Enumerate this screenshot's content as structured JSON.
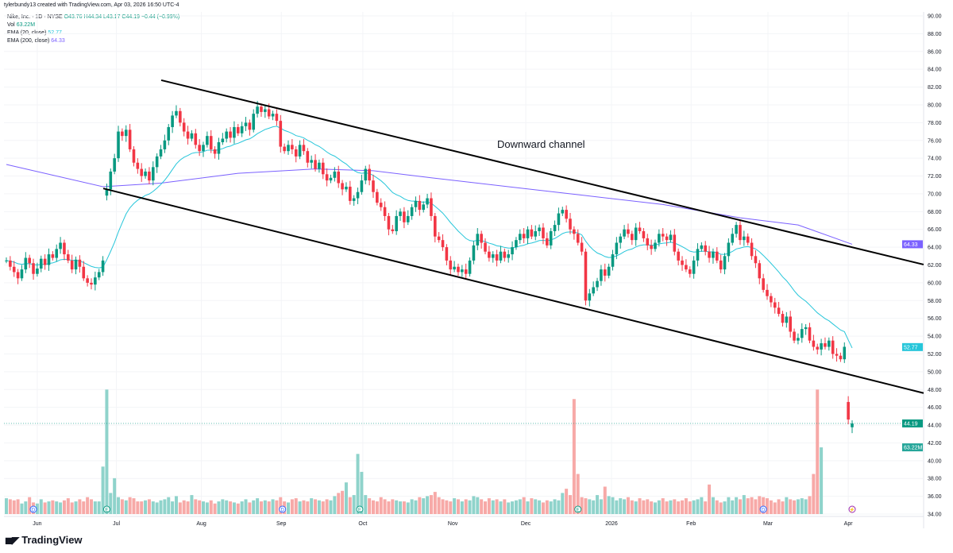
{
  "header": {
    "created": "tylerbundy13 created with TradingView.com, Apr 03, 2026 16:50 UTC-4"
  },
  "legend": {
    "symbol": "Nike, Inc. · 1D · NYSE",
    "o": "O43.76",
    "h": "H44.34",
    "l": "L43.17",
    "c": "C44.19",
    "chg": "−0.44 (−0.99%)",
    "vol_label": "Vol",
    "vol": "63.22M",
    "ema20_label": "EMA (20, close)",
    "ema20": "52.77",
    "ema200_label": "EMA (200, close)",
    "ema200": "64.33"
  },
  "footer": {
    "brand": "TradingView"
  },
  "chart_data": {
    "type": "candlestick",
    "colors": {
      "up": "#089981",
      "down": "#f23645",
      "vol_up": "#8fd3cb",
      "vol_down": "#f7a9a7",
      "ema20": "#26c6da",
      "ema200": "#7b61ff",
      "trend": "#000000"
    },
    "y_ticks": [
      "90.00",
      "88.00",
      "86.00",
      "84.00",
      "82.00",
      "80.00",
      "78.00",
      "76.00",
      "74.00",
      "72.00",
      "70.00",
      "68.00",
      "66.00",
      "64.00",
      "62.00",
      "60.00",
      "58.00",
      "56.00",
      "54.00",
      "52.00",
      "50.00",
      "48.00",
      "46.00",
      "44.00",
      "42.00",
      "40.00",
      "38.00",
      "36.00",
      "34.00"
    ],
    "ylim": [
      34,
      90
    ],
    "x_ticks": [
      {
        "label": "Jun",
        "i": 8
      },
      {
        "label": "Jul",
        "i": 28.5
      },
      {
        "label": "Aug",
        "i": 50.5
      },
      {
        "label": "Sep",
        "i": 71.2
      },
      {
        "label": "Oct",
        "i": 92.3
      },
      {
        "label": "Nov",
        "i": 115.6
      },
      {
        "label": "Dec",
        "i": 134.5
      },
      {
        "label": "2026",
        "i": 156.7
      },
      {
        "label": "Feb",
        "i": 177.3
      },
      {
        "label": "Mar",
        "i": 197.2
      },
      {
        "label": "Apr",
        "i": 218
      }
    ],
    "closes": [
      62.5,
      61.8,
      61.2,
      60.5,
      61.5,
      62.8,
      62.2,
      61,
      61.6,
      62.7,
      62,
      63.2,
      62.8,
      63.8,
      64.5,
      63.2,
      62.5,
      61.5,
      62.6,
      61.8,
      60.5,
      60,
      59.8,
      60.6,
      61.2,
      62.5,
      70.5,
      72.5,
      74,
      77,
      76.5,
      77.2,
      75,
      73.5,
      72.8,
      72,
      72.5,
      71.5,
      73,
      74.2,
      75,
      76,
      77.5,
      78.8,
      79.3,
      78,
      77,
      76.2,
      76.8,
      75.5,
      74.8,
      75.5,
      76.5,
      75,
      74.5,
      75.8,
      76.2,
      77,
      76.3,
      77.5,
      76.8,
      77.6,
      78,
      77.2,
      79,
      79.8,
      79.2,
      79.5,
      78.7,
      79,
      78.2,
      75.3,
      74.8,
      75.5,
      75,
      74.2,
      75.5,
      74.8,
      73.5,
      73.8,
      72.8,
      73.5,
      72.2,
      71.5,
      71.8,
      72.5,
      71.2,
      70.5,
      70.8,
      69.2,
      69.5,
      70.2,
      71.5,
      72.8,
      71.5,
      70.2,
      69,
      68.5,
      67.5,
      66,
      65.8,
      67.5,
      68,
      66.8,
      67.5,
      68.5,
      69.2,
      68.2,
      68.8,
      69.5,
      67.5,
      65.2,
      64.8,
      64,
      62.5,
      61.5,
      61.8,
      61.2,
      61.5,
      61,
      62.5,
      64.2,
      65.5,
      64.5,
      63.5,
      62.8,
      63.2,
      62.5,
      63.5,
      62.8,
      63.2,
      64,
      64.8,
      65.5,
      65,
      66,
      65.2,
      65.8,
      66.2,
      65,
      64.2,
      65.8,
      66.5,
      67.8,
      68.2,
      67.2,
      66,
      65.5,
      64.5,
      63.5,
      58,
      58.8,
      59.5,
      60.2,
      61.5,
      60.8,
      61.8,
      63.2,
      64.5,
      65.2,
      66,
      65.5,
      64.8,
      66.2,
      65.8,
      65,
      64.2,
      63.8,
      64.5,
      65.5,
      65.2,
      64.8,
      65.4,
      63.5,
      62.5,
      62,
      61.5,
      61,
      62.5,
      63.8,
      64.2,
      63.5,
      62.8,
      63.5,
      62.5,
      61.5,
      63,
      64.5,
      65.5,
      66.5,
      64.8,
      65.2,
      64.5,
      63,
      62.2,
      60.5,
      59.2,
      58.5,
      57.8,
      57.2,
      56.5,
      55.5,
      56.2,
      54.5,
      53.5,
      53.8,
      54.8,
      55,
      53.5,
      52.8,
      52.5,
      53.2,
      52.8,
      53.5,
      52,
      51.8,
      51.4,
      52.8,
      44.63,
      44.19
    ],
    "opens": {
      "26": 69.8,
      "218": 46.6,
      "219": 43.76
    },
    "volumes": [
      15,
      14,
      13,
      14,
      10,
      12,
      16,
      11,
      10,
      14,
      11,
      12,
      13,
      12,
      11,
      13,
      15,
      11,
      12,
      14,
      12,
      16,
      14,
      12,
      12,
      45,
      118,
      20,
      34,
      16,
      14,
      13,
      16,
      15,
      12,
      12,
      13,
      14,
      12,
      11,
      13,
      14,
      16,
      12,
      17,
      11,
      13,
      12,
      18,
      14,
      13,
      12,
      11,
      13,
      10,
      12,
      14,
      13,
      12,
      11,
      10,
      12,
      14,
      11,
      13,
      15,
      12,
      13,
      12,
      14,
      13,
      16,
      12,
      11,
      14,
      15,
      12,
      13,
      12,
      15,
      14,
      13,
      12,
      14,
      13,
      17,
      20,
      22,
      30,
      16,
      18,
      57,
      40,
      18,
      15,
      13,
      12,
      16,
      14,
      12,
      14,
      13,
      12,
      12,
      11,
      14,
      13,
      16,
      15,
      17,
      18,
      21,
      16,
      14,
      13,
      12,
      15,
      14,
      12,
      14,
      13,
      17,
      16,
      14,
      12,
      15,
      13,
      14,
      12,
      14,
      11,
      12,
      13,
      14,
      16,
      12,
      15,
      14,
      13,
      11,
      13,
      12,
      14,
      13,
      20,
      24,
      18,
      109,
      38,
      16,
      15,
      14,
      13,
      18,
      14,
      26,
      17,
      16,
      13,
      15,
      14,
      16,
      13,
      12,
      15,
      13,
      14,
      12,
      11,
      13,
      15,
      12,
      13,
      14,
      12,
      13,
      15,
      12,
      13,
      14,
      16,
      12,
      28,
      16,
      13,
      11,
      12,
      16,
      13,
      16,
      14,
      18,
      15,
      16,
      14,
      17,
      16,
      15,
      13,
      11,
      14,
      12,
      16,
      14,
      13,
      14,
      15,
      14,
      17,
      38,
      118,
      63.22
    ],
    "ema200_points": [
      [
        0,
        73.3
      ],
      [
        25,
        70.8
      ],
      [
        40,
        71.2
      ],
      [
        60,
        72.3
      ],
      [
        80,
        72.8
      ],
      [
        95,
        72.6
      ],
      [
        110,
        71.8
      ],
      [
        130,
        70.8
      ],
      [
        150,
        69.8
      ],
      [
        170,
        68.8
      ],
      [
        190,
        67.3
      ],
      [
        205,
        66.5
      ],
      [
        219,
        64.33
      ]
    ],
    "trendlines": [
      {
        "from": [
          40.1,
          82.77
        ],
        "to": [
          237.5,
          62.05
        ]
      },
      {
        "from": [
          25.1,
          70.6
        ],
        "to": [
          237.5,
          47.6
        ]
      }
    ],
    "annotation": "Downward channel",
    "last_price": "44.19",
    "ema20_label": "52.77",
    "ema200_label": "64.33",
    "vol_label": "63.22M",
    "events": [
      {
        "i": 26,
        "t": "E",
        "c": "#089981"
      },
      {
        "i": 7,
        "t": "D",
        "c": "#2962ff"
      },
      {
        "i": 71.5,
        "t": "D",
        "c": "#2962ff"
      },
      {
        "i": 91.5,
        "t": "E",
        "c": "#089981"
      },
      {
        "i": 148,
        "t": "E",
        "c": "#089981"
      },
      {
        "i": 196,
        "t": "D",
        "c": "#2962ff"
      },
      {
        "i": 219,
        "t": "⚡",
        "c": "#9c27b0"
      }
    ]
  }
}
